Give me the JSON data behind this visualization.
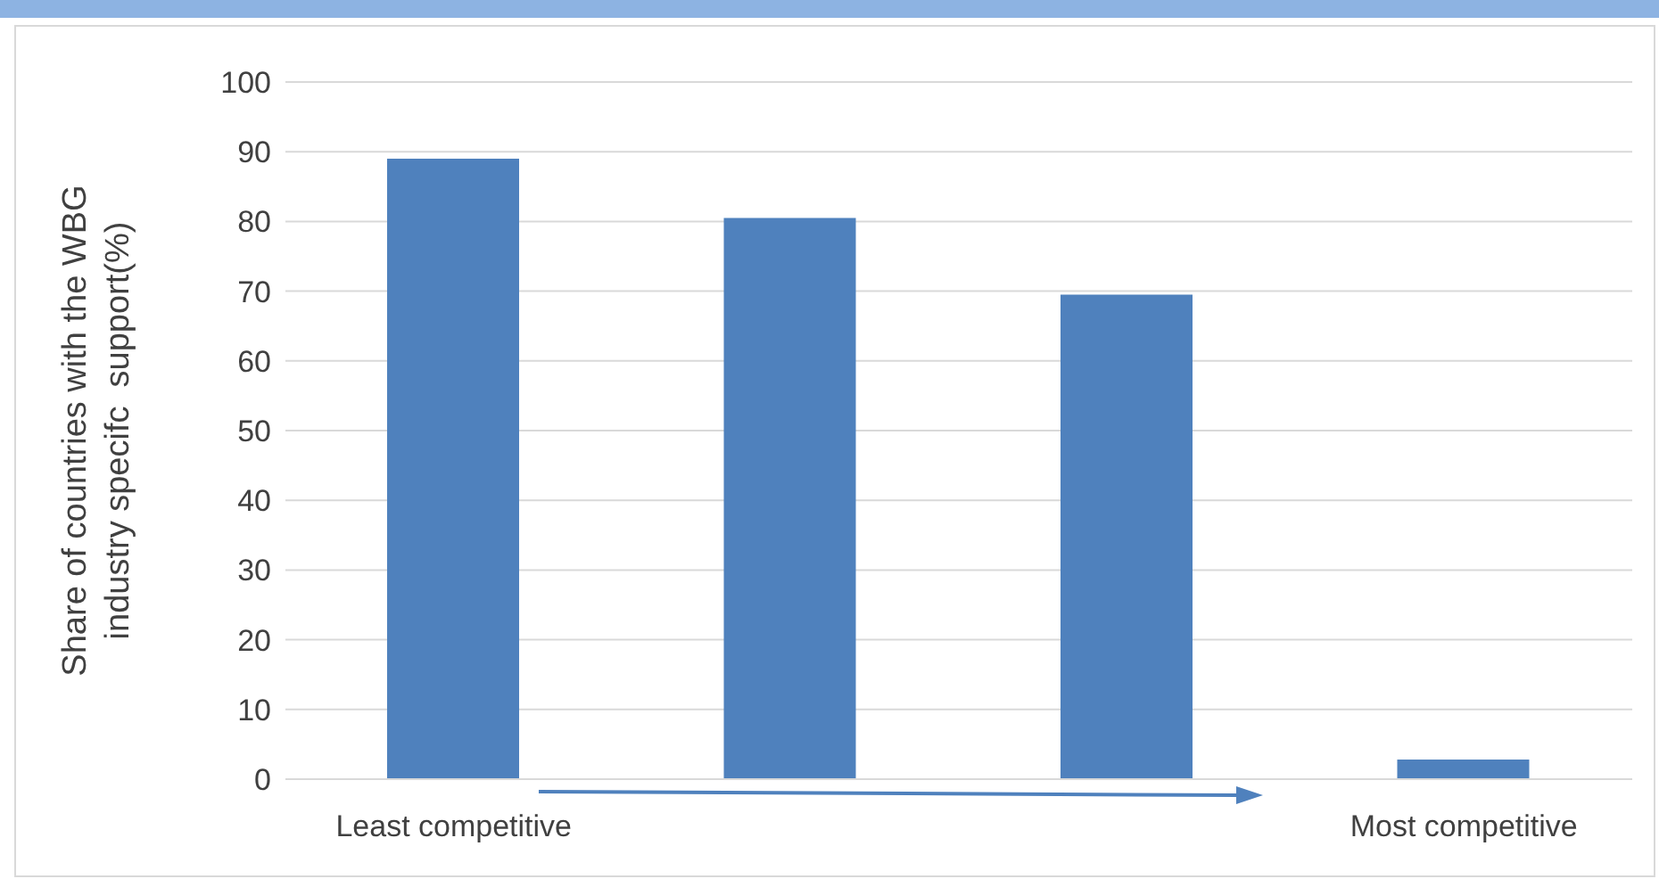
{
  "chart_data": {
    "type": "bar",
    "ylabel": "Share of countries with the WBG industry specifc  support(%)",
    "categories": [
      "Least competitive",
      null,
      null,
      "Most competitive"
    ],
    "values": [
      89,
      80.5,
      69.5,
      2.8
    ],
    "color": "#4f81bd",
    "ylim": [
      0,
      100
    ],
    "yticks": [
      0,
      10,
      20,
      30,
      40,
      50,
      60,
      70,
      80,
      90,
      100
    ],
    "grid": "y"
  }
}
